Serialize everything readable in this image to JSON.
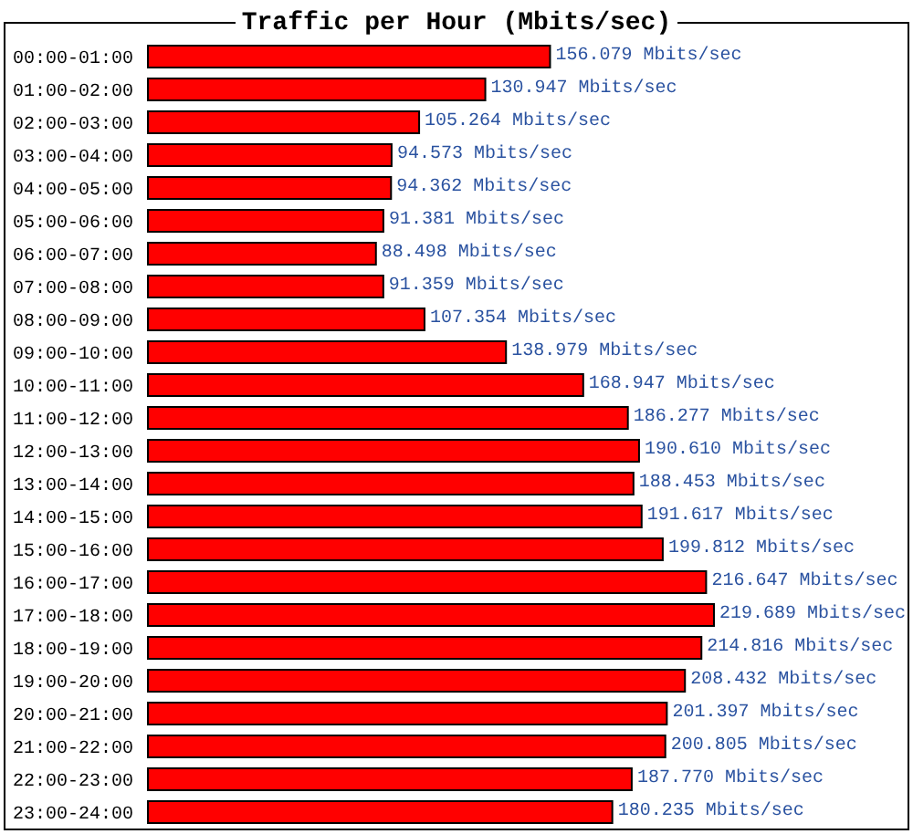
{
  "chart_data": {
    "type": "bar",
    "orientation": "horizontal",
    "title": "Traffic per Hour (Mbits/sec)",
    "categories": [
      "00:00-01:00",
      "01:00-02:00",
      "02:00-03:00",
      "03:00-04:00",
      "04:00-05:00",
      "05:00-06:00",
      "06:00-07:00",
      "07:00-08:00",
      "08:00-09:00",
      "09:00-10:00",
      "10:00-11:00",
      "11:00-12:00",
      "12:00-13:00",
      "13:00-14:00",
      "14:00-15:00",
      "15:00-16:00",
      "16:00-17:00",
      "17:00-18:00",
      "18:00-19:00",
      "19:00-20:00",
      "20:00-21:00",
      "21:00-22:00",
      "22:00-23:00",
      "23:00-24:00"
    ],
    "values": [
      156.079,
      130.947,
      105.264,
      94.573,
      94.362,
      91.381,
      88.498,
      91.359,
      107.354,
      138.979,
      168.947,
      186.277,
      190.61,
      188.453,
      191.617,
      199.812,
      216.647,
      219.689,
      214.816,
      208.432,
      201.397,
      200.805,
      187.77,
      180.235
    ],
    "value_labels": [
      "156.079 Mbits/sec",
      "130.947 Mbits/sec",
      "105.264 Mbits/sec",
      "94.573 Mbits/sec",
      "94.362 Mbits/sec",
      "91.381 Mbits/sec",
      "88.498 Mbits/sec",
      "91.359 Mbits/sec",
      "107.354 Mbits/sec",
      "138.979 Mbits/sec",
      "168.947 Mbits/sec",
      "186.277 Mbits/sec",
      "190.610 Mbits/sec",
      "188.453 Mbits/sec",
      "191.617 Mbits/sec",
      "199.812 Mbits/sec",
      "216.647 Mbits/sec",
      "219.689 Mbits/sec",
      "214.816 Mbits/sec",
      "208.432 Mbits/sec",
      "201.397 Mbits/sec",
      "200.805 Mbits/sec",
      "187.770 Mbits/sec",
      "180.235 Mbits/sec"
    ],
    "color": "#ff0000"
  }
}
